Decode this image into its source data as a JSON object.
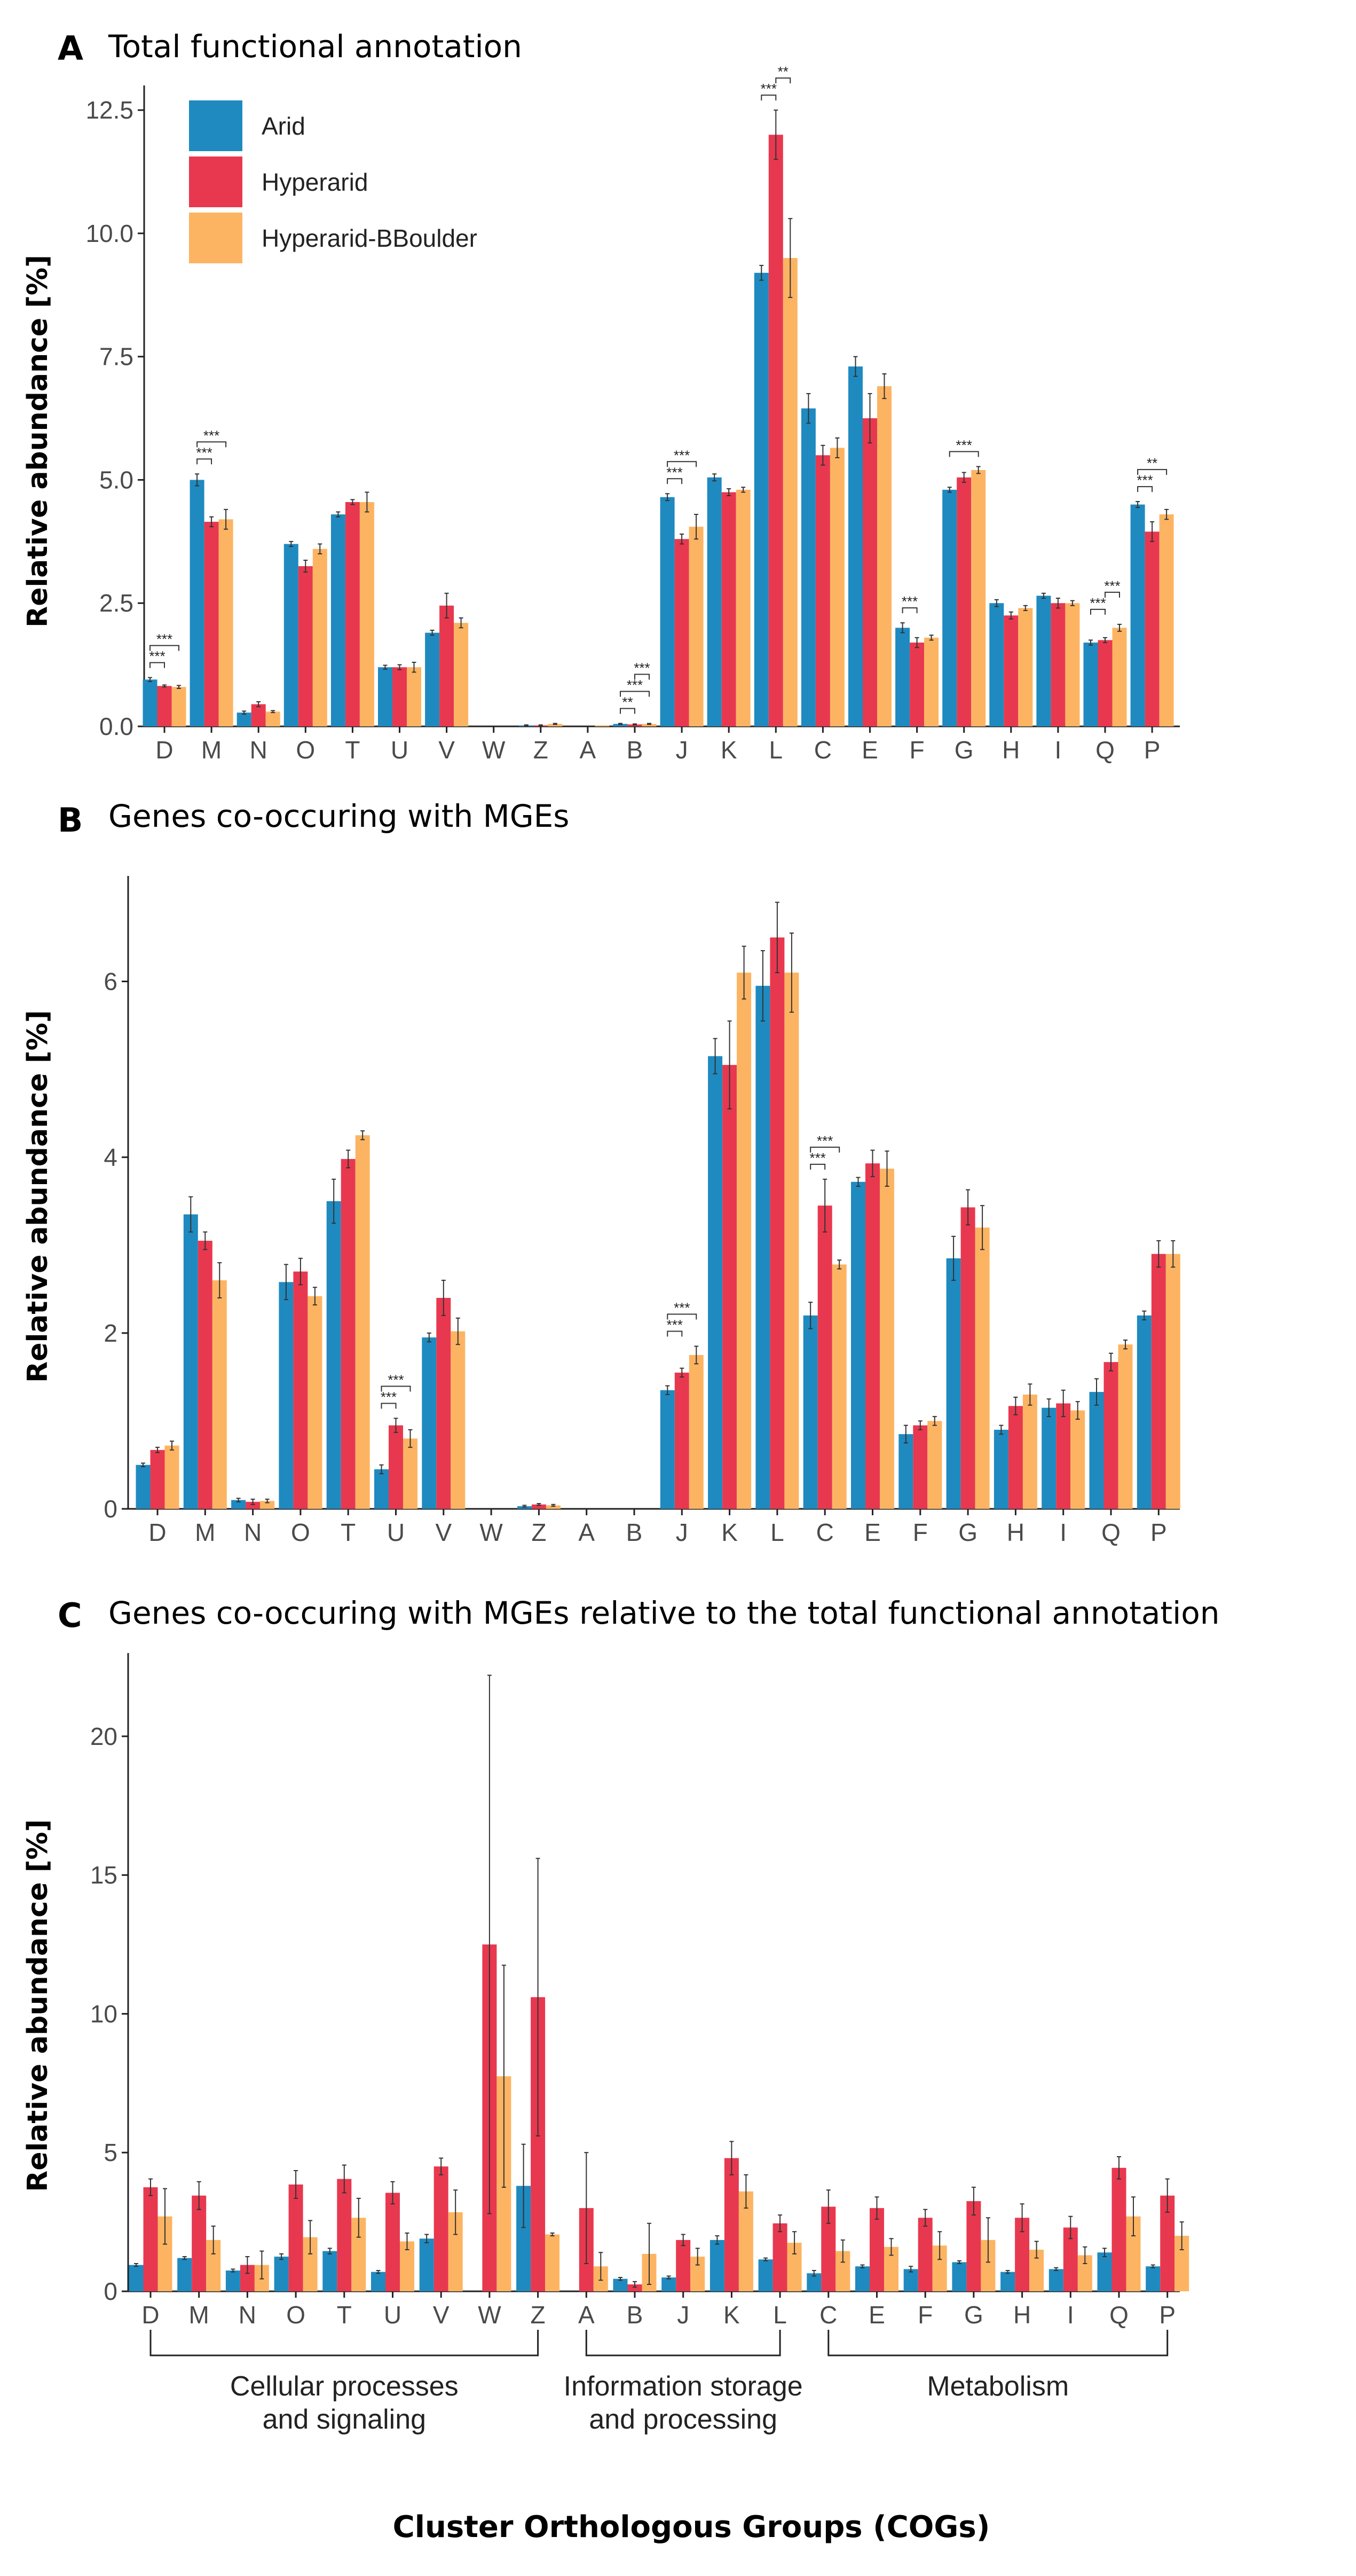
{
  "xlabel": "Cluster Orthologous Groups (COGs)",
  "legend": [
    {
      "name": "Arid",
      "color": "#1f8ac0"
    },
    {
      "name": "Hyperarid",
      "color": "#e8384f"
    },
    {
      "name": "Hyperarid-BBoulder",
      "color": "#fdb462"
    }
  ],
  "groups": [
    {
      "label": "Cellular processes\nand signaling",
      "from": "D",
      "to": "Z"
    },
    {
      "label": "Information storage\nand processing",
      "from": "A",
      "to": "L"
    },
    {
      "label": "Metabolism",
      "from": "C",
      "to": "P"
    }
  ],
  "chart_data": [
    {
      "type": "bar",
      "letter": "A",
      "title": "Total functional annotation",
      "ylabel": "Relative abundance [%]",
      "ylim": [
        0,
        13
      ],
      "yticks": [
        "0.0",
        "2.5",
        "5.0",
        "7.5",
        "10.0",
        "12.5"
      ],
      "categories": [
        "D",
        "M",
        "N",
        "O",
        "T",
        "U",
        "V",
        "W",
        "Z",
        "A",
        "B",
        "J",
        "K",
        "L",
        "C",
        "E",
        "F",
        "G",
        "H",
        "I",
        "Q",
        "P"
      ],
      "series": [
        {
          "name": "Arid",
          "values": [
            0.95,
            5.0,
            0.28,
            3.7,
            4.3,
            1.2,
            1.9,
            0,
            0.02,
            0,
            0.05,
            4.65,
            5.05,
            9.2,
            6.45,
            7.3,
            2.0,
            4.8,
            2.5,
            2.65,
            1.7,
            4.5
          ],
          "err": [
            0.04,
            0.12,
            0.03,
            0.05,
            0.05,
            0.04,
            0.05,
            0,
            0.01,
            0,
            0.01,
            0.07,
            0.07,
            0.15,
            0.3,
            0.2,
            0.1,
            0.05,
            0.07,
            0.05,
            0.05,
            0.06
          ]
        },
        {
          "name": "Hyperarid",
          "values": [
            0.82,
            4.15,
            0.45,
            3.25,
            4.55,
            1.2,
            2.45,
            0,
            0.02,
            0,
            0.04,
            3.8,
            4.75,
            12.0,
            5.5,
            6.25,
            1.7,
            5.05,
            2.25,
            2.5,
            1.75,
            3.95
          ],
          "err": [
            0.02,
            0.1,
            0.05,
            0.12,
            0.05,
            0.05,
            0.25,
            0,
            0.01,
            0,
            0.01,
            0.1,
            0.07,
            0.5,
            0.2,
            0.5,
            0.1,
            0.1,
            0.07,
            0.1,
            0.05,
            0.2
          ]
        },
        {
          "name": "Hyperarid-BBoulder",
          "values": [
            0.8,
            4.2,
            0.3,
            3.6,
            4.55,
            1.2,
            2.1,
            0,
            0.05,
            0.02,
            0.05,
            4.05,
            4.8,
            9.5,
            5.65,
            6.9,
            1.8,
            5.2,
            2.4,
            2.5,
            2.0,
            4.3
          ],
          "err": [
            0.03,
            0.2,
            0.02,
            0.1,
            0.2,
            0.1,
            0.1,
            0,
            0.01,
            0,
            0.01,
            0.25,
            0.05,
            0.8,
            0.2,
            0.25,
            0.05,
            0.07,
            0.05,
            0.05,
            0.07,
            0.1
          ]
        }
      ],
      "significance": [
        {
          "cat": "D",
          "a": 0,
          "b": 1,
          "label": "***",
          "level": 0
        },
        {
          "cat": "D",
          "a": 0,
          "b": 2,
          "label": "***",
          "level": 1
        },
        {
          "cat": "M",
          "a": 0,
          "b": 1,
          "label": "***",
          "level": 0
        },
        {
          "cat": "M",
          "a": 0,
          "b": 2,
          "label": "***",
          "level": 1
        },
        {
          "cat": "B",
          "a": 0,
          "b": 1,
          "label": "**",
          "level": 0
        },
        {
          "cat": "B",
          "a": 0,
          "b": 2,
          "label": "***",
          "level": 1
        },
        {
          "cat": "B",
          "a": 1,
          "b": 2,
          "label": "***",
          "level": 2
        },
        {
          "cat": "J",
          "a": 0,
          "b": 1,
          "label": "***",
          "level": 0
        },
        {
          "cat": "J",
          "a": 0,
          "b": 2,
          "label": "***",
          "level": 1
        },
        {
          "cat": "L",
          "a": 0,
          "b": 1,
          "label": "***",
          "level": 0
        },
        {
          "cat": "L",
          "a": 1,
          "b": 2,
          "label": "**",
          "level": 1
        },
        {
          "cat": "F",
          "a": 0,
          "b": 1,
          "label": "***",
          "level": 0
        },
        {
          "cat": "G",
          "a": 0,
          "b": 2,
          "label": "***",
          "level": 0
        },
        {
          "cat": "Q",
          "a": 0,
          "b": 1,
          "label": "***",
          "level": 0
        },
        {
          "cat": "Q",
          "a": 1,
          "b": 2,
          "label": "***",
          "level": 1
        },
        {
          "cat": "P",
          "a": 0,
          "b": 1,
          "label": "***",
          "level": 0
        },
        {
          "cat": "P",
          "a": 0,
          "b": 2,
          "label": "**",
          "level": 1
        }
      ]
    },
    {
      "type": "bar",
      "letter": "B",
      "title": "Genes co-occuring with MGEs",
      "ylabel": "Relative abundance [%]",
      "ylim": [
        0,
        7.2
      ],
      "yticks": [
        "0",
        "2",
        "4",
        "6"
      ],
      "categories": [
        "D",
        "M",
        "N",
        "O",
        "T",
        "U",
        "V",
        "W",
        "Z",
        "A",
        "B",
        "J",
        "K",
        "L",
        "C",
        "E",
        "F",
        "G",
        "H",
        "I",
        "Q",
        "P"
      ],
      "series": [
        {
          "name": "Arid",
          "values": [
            0.5,
            3.35,
            0.1,
            2.58,
            3.5,
            0.45,
            1.95,
            0,
            0.03,
            0,
            0,
            1.35,
            5.15,
            5.95,
            2.2,
            3.72,
            0.85,
            2.85,
            0.9,
            1.15,
            1.33,
            2.2
          ],
          "err": [
            0.02,
            0.2,
            0.02,
            0.2,
            0.25,
            0.05,
            0.05,
            0,
            0.01,
            0,
            0,
            0.05,
            0.2,
            0.4,
            0.15,
            0.05,
            0.1,
            0.25,
            0.05,
            0.1,
            0.15,
            0.05
          ]
        },
        {
          "name": "Hyperarid",
          "values": [
            0.67,
            3.05,
            0.08,
            2.7,
            3.98,
            0.95,
            2.4,
            0,
            0.05,
            0,
            0,
            1.55,
            5.05,
            6.5,
            3.45,
            3.93,
            0.95,
            3.43,
            1.17,
            1.2,
            1.67,
            2.9
          ],
          "err": [
            0.03,
            0.1,
            0.03,
            0.15,
            0.1,
            0.08,
            0.2,
            0,
            0.01,
            0,
            0,
            0.05,
            0.5,
            0.4,
            0.3,
            0.15,
            0.05,
            0.2,
            0.1,
            0.15,
            0.1,
            0.15
          ]
        },
        {
          "name": "Hyperarid-BBoulder",
          "values": [
            0.72,
            2.6,
            0.09,
            2.42,
            4.25,
            0.8,
            2.02,
            0,
            0.04,
            0,
            0,
            1.75,
            6.1,
            6.1,
            2.78,
            3.87,
            1.0,
            3.2,
            1.3,
            1.12,
            1.87,
            2.9
          ],
          "err": [
            0.05,
            0.2,
            0.02,
            0.1,
            0.05,
            0.1,
            0.15,
            0,
            0.01,
            0,
            0,
            0.1,
            0.3,
            0.45,
            0.05,
            0.2,
            0.05,
            0.25,
            0.12,
            0.1,
            0.05,
            0.15
          ]
        }
      ],
      "significance": [
        {
          "cat": "U",
          "a": 0,
          "b": 1,
          "label": "***",
          "level": 0
        },
        {
          "cat": "U",
          "a": 0,
          "b": 2,
          "label": "***",
          "level": 1
        },
        {
          "cat": "J",
          "a": 0,
          "b": 1,
          "label": "***",
          "level": 0
        },
        {
          "cat": "J",
          "a": 0,
          "b": 2,
          "label": "***",
          "level": 1
        },
        {
          "cat": "C",
          "a": 0,
          "b": 1,
          "label": "***",
          "level": 0
        },
        {
          "cat": "C",
          "a": 0,
          "b": 2,
          "label": "***",
          "level": 1
        }
      ]
    },
    {
      "type": "bar",
      "letter": "C",
      "title": "Genes co-occuring with MGEs relative to the total functional annotation",
      "ylabel": "Relative abundance [%]",
      "ylim": [
        0,
        23
      ],
      "yticks": [
        "0",
        "5",
        "10",
        "15",
        "20"
      ],
      "categories": [
        "D",
        "M",
        "N",
        "O",
        "T",
        "U",
        "V",
        "W",
        "Z",
        "A",
        "B",
        "J",
        "K",
        "L",
        "C",
        "E",
        "F",
        "G",
        "H",
        "I",
        "Q",
        "P"
      ],
      "series": [
        {
          "name": "Arid",
          "values": [
            0.95,
            1.2,
            0.75,
            1.25,
            1.45,
            0.7,
            1.9,
            0,
            3.8,
            0,
            0.45,
            0.5,
            1.85,
            1.15,
            0.65,
            0.9,
            0.8,
            1.05,
            0.7,
            0.8,
            1.4,
            0.9
          ],
          "err": [
            0.05,
            0.05,
            0.05,
            0.1,
            0.1,
            0.05,
            0.15,
            0,
            1.5,
            0,
            0.05,
            0.05,
            0.15,
            0.05,
            0.1,
            0.05,
            0.1,
            0.05,
            0.05,
            0.05,
            0.15,
            0.05
          ]
        },
        {
          "name": "Hyperarid",
          "values": [
            3.75,
            3.45,
            0.95,
            3.85,
            4.05,
            3.55,
            4.5,
            12.5,
            10.6,
            3.0,
            0.25,
            1.85,
            4.8,
            2.45,
            3.05,
            3.0,
            2.65,
            3.25,
            2.65,
            2.3,
            4.45,
            3.45
          ],
          "err": [
            0.3,
            0.5,
            0.3,
            0.5,
            0.5,
            0.4,
            0.3,
            9.7,
            5.0,
            2.0,
            0.1,
            0.2,
            0.6,
            0.3,
            0.6,
            0.4,
            0.3,
            0.5,
            0.5,
            0.4,
            0.4,
            0.6
          ]
        },
        {
          "name": "Hyperarid-BBoulder",
          "values": [
            2.7,
            1.85,
            0.95,
            1.95,
            2.65,
            1.8,
            2.85,
            7.75,
            2.05,
            0.9,
            1.35,
            1.25,
            3.6,
            1.75,
            1.45,
            1.6,
            1.65,
            1.85,
            1.5,
            1.3,
            2.7,
            2.0
          ],
          "err": [
            1.0,
            0.5,
            0.5,
            0.6,
            0.7,
            0.3,
            0.8,
            4.0,
            0.05,
            0.5,
            1.1,
            0.3,
            0.6,
            0.4,
            0.4,
            0.3,
            0.5,
            0.8,
            0.3,
            0.3,
            0.7,
            0.5
          ]
        }
      ]
    }
  ]
}
